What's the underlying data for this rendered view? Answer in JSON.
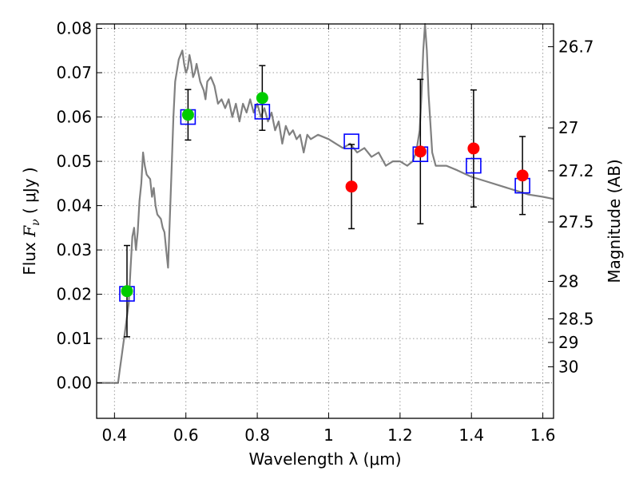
{
  "chart_data": {
    "type": "scatter",
    "xlabel": "Wavelength  λ (μm)",
    "ylabel_prefix": "Flux  ",
    "ylabel_var": "F",
    "ylabel_sub": "ν",
    "ylabel_suffix": "  ( μJy )",
    "y2label": "Magnitude (AB)",
    "xlim": [
      0.35,
      1.63
    ],
    "ylim": [
      -0.008,
      0.081
    ],
    "grid": true,
    "x_ticks": [
      {
        "v": 0.4,
        "label": "0.4"
      },
      {
        "v": 0.6,
        "label": "0.6"
      },
      {
        "v": 0.8,
        "label": "0.8"
      },
      {
        "v": 1.0,
        "label": "1"
      },
      {
        "v": 1.2,
        "label": "1.2"
      },
      {
        "v": 1.4,
        "label": "1.4"
      },
      {
        "v": 1.6,
        "label": "1.6"
      }
    ],
    "y_ticks": [
      {
        "v": 0.0,
        "label": "0.00"
      },
      {
        "v": 0.01,
        "label": "0.01"
      },
      {
        "v": 0.02,
        "label": "0.02"
      },
      {
        "v": 0.03,
        "label": "0.03"
      },
      {
        "v": 0.04,
        "label": "0.04"
      },
      {
        "v": 0.05,
        "label": "0.05"
      },
      {
        "v": 0.06,
        "label": "0.06"
      },
      {
        "v": 0.07,
        "label": "0.07"
      },
      {
        "v": 0.08,
        "label": "0.08"
      }
    ],
    "y2_ticks": [
      {
        "mag": 26.7,
        "label": "26.7"
      },
      {
        "mag": 27,
        "label": "27"
      },
      {
        "mag": 27.2,
        "label": "27.2"
      },
      {
        "mag": 27.5,
        "label": "27.5"
      },
      {
        "mag": 28,
        "label": "28"
      },
      {
        "mag": 28.5,
        "label": "28.5"
      },
      {
        "mag": 29,
        "label": "29"
      },
      {
        "mag": 30,
        "label": "30"
      }
    ],
    "model_color": "#808080",
    "model_sed": [
      [
        0.35,
        0.0
      ],
      [
        0.375,
        0.0
      ],
      [
        0.4,
        0.0
      ],
      [
        0.41,
        0.0
      ],
      [
        0.415,
        0.003
      ],
      [
        0.42,
        0.006
      ],
      [
        0.43,
        0.012
      ],
      [
        0.44,
        0.018
      ],
      [
        0.445,
        0.026
      ],
      [
        0.45,
        0.033
      ],
      [
        0.455,
        0.035
      ],
      [
        0.46,
        0.03
      ],
      [
        0.465,
        0.034
      ],
      [
        0.47,
        0.041
      ],
      [
        0.475,
        0.045
      ],
      [
        0.48,
        0.052
      ],
      [
        0.485,
        0.049
      ],
      [
        0.49,
        0.047
      ],
      [
        0.5,
        0.046
      ],
      [
        0.505,
        0.042
      ],
      [
        0.51,
        0.044
      ],
      [
        0.515,
        0.04
      ],
      [
        0.52,
        0.038
      ],
      [
        0.53,
        0.037
      ],
      [
        0.535,
        0.035
      ],
      [
        0.54,
        0.034
      ],
      [
        0.545,
        0.03
      ],
      [
        0.55,
        0.026
      ],
      [
        0.555,
        0.037
      ],
      [
        0.56,
        0.048
      ],
      [
        0.565,
        0.06
      ],
      [
        0.57,
        0.068
      ],
      [
        0.58,
        0.073
      ],
      [
        0.59,
        0.075
      ],
      [
        0.595,
        0.072
      ],
      [
        0.6,
        0.07
      ],
      [
        0.605,
        0.071
      ],
      [
        0.61,
        0.074
      ],
      [
        0.615,
        0.072
      ],
      [
        0.62,
        0.069
      ],
      [
        0.625,
        0.07
      ],
      [
        0.63,
        0.072
      ],
      [
        0.64,
        0.068
      ],
      [
        0.65,
        0.066
      ],
      [
        0.655,
        0.064
      ],
      [
        0.66,
        0.068
      ],
      [
        0.67,
        0.069
      ],
      [
        0.68,
        0.067
      ],
      [
        0.69,
        0.063
      ],
      [
        0.7,
        0.064
      ],
      [
        0.71,
        0.062
      ],
      [
        0.72,
        0.064
      ],
      [
        0.73,
        0.06
      ],
      [
        0.74,
        0.063
      ],
      [
        0.75,
        0.059
      ],
      [
        0.76,
        0.063
      ],
      [
        0.77,
        0.061
      ],
      [
        0.78,
        0.064
      ],
      [
        0.79,
        0.061
      ],
      [
        0.8,
        0.063
      ],
      [
        0.81,
        0.06
      ],
      [
        0.82,
        0.062
      ],
      [
        0.83,
        0.059
      ],
      [
        0.84,
        0.061
      ],
      [
        0.85,
        0.057
      ],
      [
        0.86,
        0.059
      ],
      [
        0.87,
        0.054
      ],
      [
        0.88,
        0.058
      ],
      [
        0.89,
        0.056
      ],
      [
        0.9,
        0.057
      ],
      [
        0.91,
        0.055
      ],
      [
        0.92,
        0.056
      ],
      [
        0.93,
        0.052
      ],
      [
        0.94,
        0.056
      ],
      [
        0.95,
        0.055
      ],
      [
        0.97,
        0.056
      ],
      [
        1.0,
        0.055
      ],
      [
        1.02,
        0.054
      ],
      [
        1.04,
        0.053
      ],
      [
        1.06,
        0.054
      ],
      [
        1.08,
        0.052
      ],
      [
        1.1,
        0.053
      ],
      [
        1.12,
        0.051
      ],
      [
        1.14,
        0.052
      ],
      [
        1.16,
        0.049
      ],
      [
        1.18,
        0.05
      ],
      [
        1.2,
        0.05
      ],
      [
        1.22,
        0.049
      ],
      [
        1.235,
        0.05
      ],
      [
        1.245,
        0.052
      ],
      [
        1.255,
        0.057
      ],
      [
        1.26,
        0.065
      ],
      [
        1.265,
        0.075
      ],
      [
        1.27,
        0.081
      ],
      [
        1.275,
        0.075
      ],
      [
        1.28,
        0.065
      ],
      [
        1.29,
        0.052
      ],
      [
        1.3,
        0.049
      ],
      [
        1.33,
        0.049
      ],
      [
        1.36,
        0.048
      ],
      [
        1.4,
        0.0465
      ],
      [
        1.44,
        0.0455
      ],
      [
        1.48,
        0.0445
      ],
      [
        1.52,
        0.0435
      ],
      [
        1.56,
        0.0425
      ],
      [
        1.6,
        0.042
      ],
      [
        1.63,
        0.0415
      ]
    ],
    "model_points": [
      {
        "x": 0.435,
        "y": 0.0201
      },
      {
        "x": 0.606,
        "y": 0.06
      },
      {
        "x": 0.814,
        "y": 0.0612
      },
      {
        "x": 1.064,
        "y": 0.0545
      },
      {
        "x": 1.257,
        "y": 0.0516
      },
      {
        "x": 1.406,
        "y": 0.049
      },
      {
        "x": 1.543,
        "y": 0.0445
      }
    ],
    "observed": [
      {
        "x": 0.435,
        "y": 0.0207,
        "err": 0.0103,
        "color": "#00cc00"
      },
      {
        "x": 0.606,
        "y": 0.0605,
        "err": 0.0057,
        "color": "#00cc00"
      },
      {
        "x": 0.814,
        "y": 0.0643,
        "err": 0.0073,
        "color": "#00cc00"
      },
      {
        "x": 1.064,
        "y": 0.0443,
        "err": 0.0095,
        "color": "#ff0000"
      },
      {
        "x": 1.257,
        "y": 0.0522,
        "err": 0.0163,
        "color": "#ff0000"
      },
      {
        "x": 1.406,
        "y": 0.0529,
        "err": 0.0132,
        "color": "#ff0000"
      },
      {
        "x": 1.543,
        "y": 0.0468,
        "err": 0.0088,
        "color": "#ff0000"
      }
    ],
    "zero_line": 0.0,
    "marker_colors": {
      "detected": "#00cc00",
      "upper": "#ff0000",
      "model": "#0000ff",
      "errorbar": "#000000"
    }
  }
}
